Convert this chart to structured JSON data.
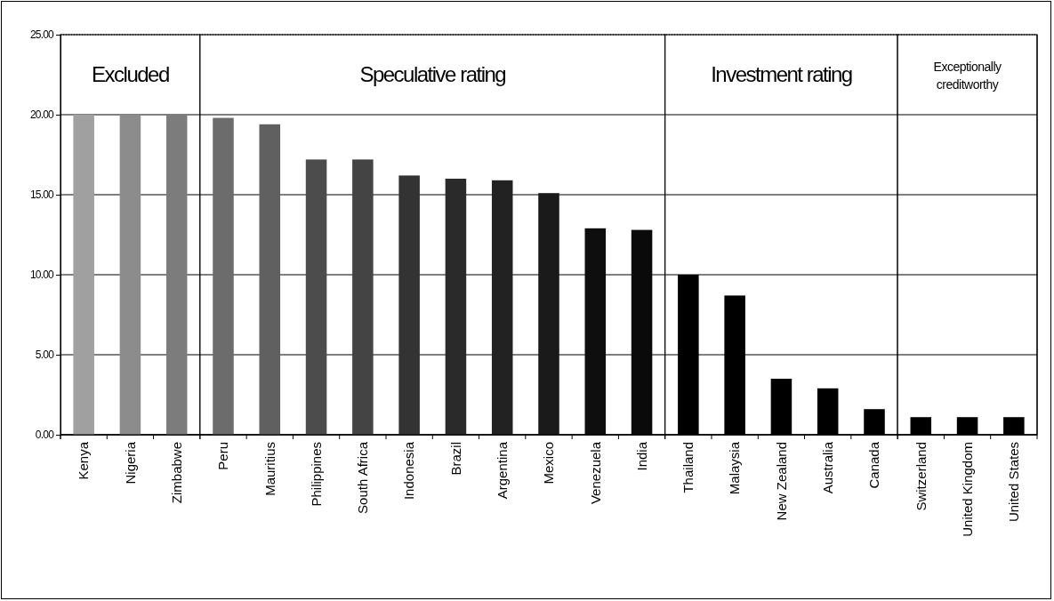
{
  "chart_data": {
    "type": "bar",
    "categories": [
      "Kenya",
      "Nigeria",
      "Zimbabwe",
      "Peru",
      "Mauritius",
      "Philippines",
      "South Africa",
      "Indonesia",
      "Brazil",
      "Argentina",
      "Mexico",
      "Venezuela",
      "India",
      "Thailand",
      "Malaysia",
      "New Zealand",
      "Australia",
      "Canada",
      "Switzerland",
      "United Kingdom",
      "United States"
    ],
    "values": [
      20.0,
      20.0,
      20.0,
      19.8,
      19.4,
      17.2,
      17.2,
      16.2,
      16.0,
      15.9,
      15.1,
      12.9,
      12.8,
      10.0,
      8.7,
      3.5,
      2.9,
      1.6,
      1.1,
      1.1,
      1.1
    ],
    "colors": [
      "#a0a0a0",
      "#8c8c8c",
      "#7c7c7c",
      "#6c6c6c",
      "#606060",
      "#4c4c4c",
      "#444444",
      "#333333",
      "#2a2a2a",
      "#222222",
      "#1a1a1a",
      "#0e0e0e",
      "#0a0a0a",
      "#000000",
      "#000000",
      "#000000",
      "#000000",
      "#000000",
      "#000000",
      "#000000",
      "#000000"
    ],
    "ylim": [
      0,
      25
    ],
    "yticks": [
      {
        "value": 0,
        "label": "0.00"
      },
      {
        "value": 5,
        "label": "5.00"
      },
      {
        "value": 10,
        "label": "10.00"
      },
      {
        "value": 15,
        "label": "15.00"
      },
      {
        "value": 20,
        "label": "20.00"
      },
      {
        "value": 25,
        "label": "25.00"
      }
    ],
    "grid": "y",
    "bands": [
      {
        "axis": "x",
        "from": "Kenya",
        "to": "Zimbabwe",
        "label": "Excluded",
        "color": "#ffffff"
      },
      {
        "axis": "x",
        "from": "Peru",
        "to": "India",
        "label": "Speculative rating",
        "color": "#ffffff"
      },
      {
        "axis": "x",
        "from": "Thailand",
        "to": "Canada",
        "label": "Investment rating",
        "color": "#ffffff"
      },
      {
        "axis": "x",
        "from": "Switzerland",
        "to": "United States",
        "label": "Exceptionally creditworthy",
        "color": "#ffffff"
      }
    ]
  }
}
